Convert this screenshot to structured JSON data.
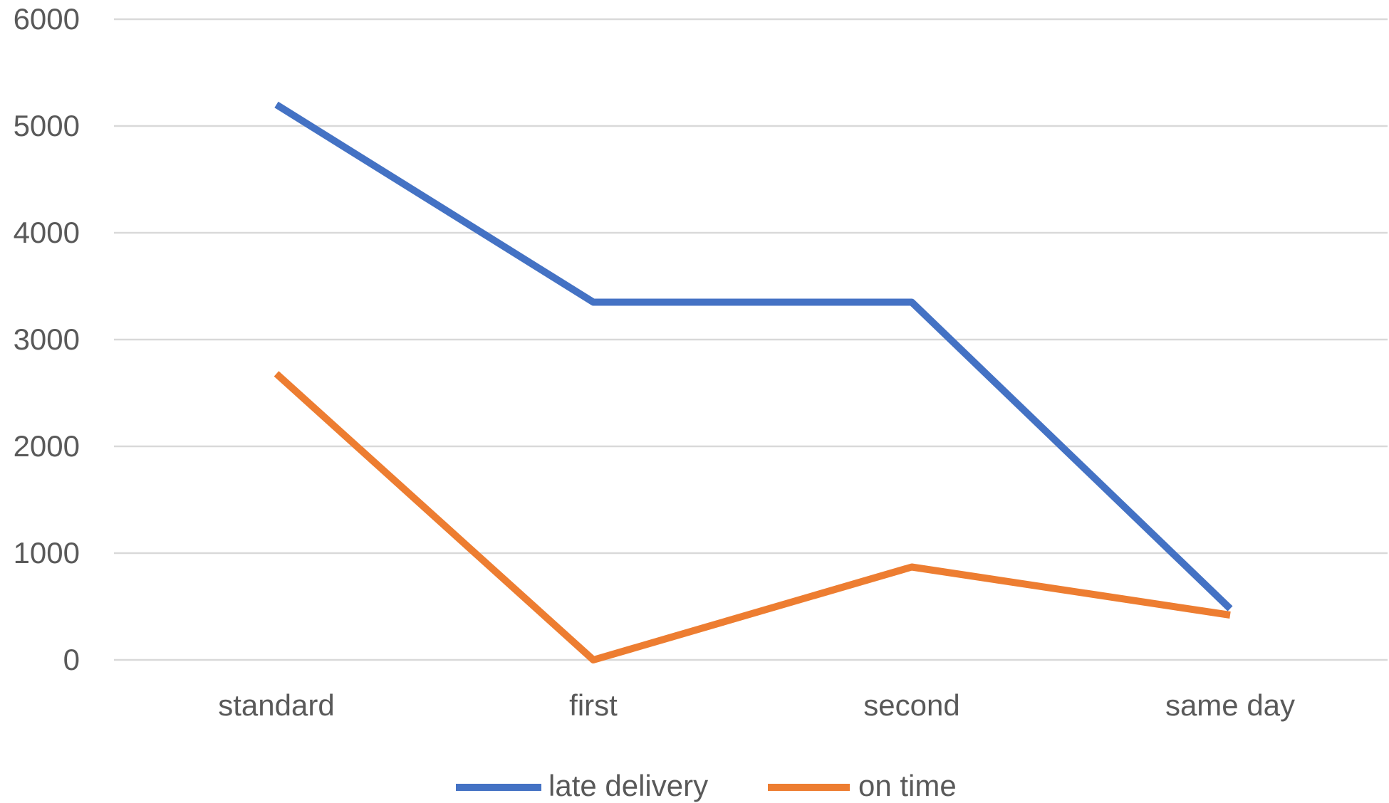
{
  "chart_data": {
    "type": "line",
    "title": "",
    "xlabel": "",
    "ylabel": "",
    "categories": [
      "standard",
      "first",
      "second",
      "same day"
    ],
    "series": [
      {
        "name": "late delivery",
        "values": [
          5200,
          3350,
          3350,
          480
        ],
        "color": "#4472C4"
      },
      {
        "name": "on time",
        "values": [
          2680,
          0,
          870,
          420
        ],
        "color": "#ED7D31"
      }
    ],
    "ylim": [
      0,
      6000
    ],
    "yticks": [
      "0",
      "1000",
      "2000",
      "3000",
      "4000",
      "5000",
      "6000"
    ],
    "grid": true,
    "legend": "bottom"
  }
}
